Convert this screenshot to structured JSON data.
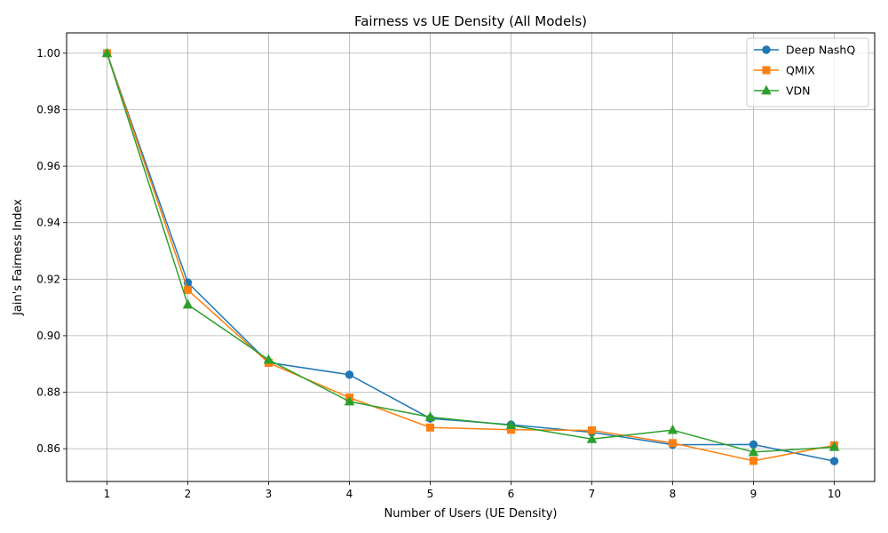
{
  "chart_data": {
    "type": "line",
    "title": "Fairness vs UE Density (All Models)",
    "xlabel": "Number of Users (UE Density)",
    "ylabel": "Jain's Fairness Index",
    "x": [
      1,
      2,
      3,
      4,
      5,
      6,
      7,
      8,
      9,
      10
    ],
    "xlim": [
      0.5,
      10.5
    ],
    "ylim": [
      0.8484,
      1.0072
    ],
    "yticks": [
      0.86,
      0.88,
      0.9,
      0.92,
      0.94,
      0.96,
      0.98,
      1.0
    ],
    "ytick_labels": [
      "0.86",
      "0.88",
      "0.90",
      "0.92",
      "0.94",
      "0.96",
      "0.98",
      "1.00"
    ],
    "grid": true,
    "legend_position": "top-right",
    "series": [
      {
        "name": "Deep NashQ",
        "color": "#1f77b4",
        "marker": "circle",
        "values": [
          1.0,
          0.9188,
          0.8905,
          0.8862,
          0.8707,
          0.8685,
          0.8658,
          0.8614,
          0.8615,
          0.8556
        ]
      },
      {
        "name": "QMIX",
        "color": "#ff7f0e",
        "marker": "square",
        "values": [
          1.0,
          0.9162,
          0.8904,
          0.8781,
          0.8675,
          0.8667,
          0.8665,
          0.862,
          0.8557,
          0.8612
        ]
      },
      {
        "name": "VDN",
        "color": "#2ca02c",
        "marker": "triangle",
        "values": [
          1.0,
          0.911,
          0.8915,
          0.8767,
          0.8712,
          0.8683,
          0.8634,
          0.8666,
          0.8588,
          0.8606
        ]
      }
    ]
  }
}
